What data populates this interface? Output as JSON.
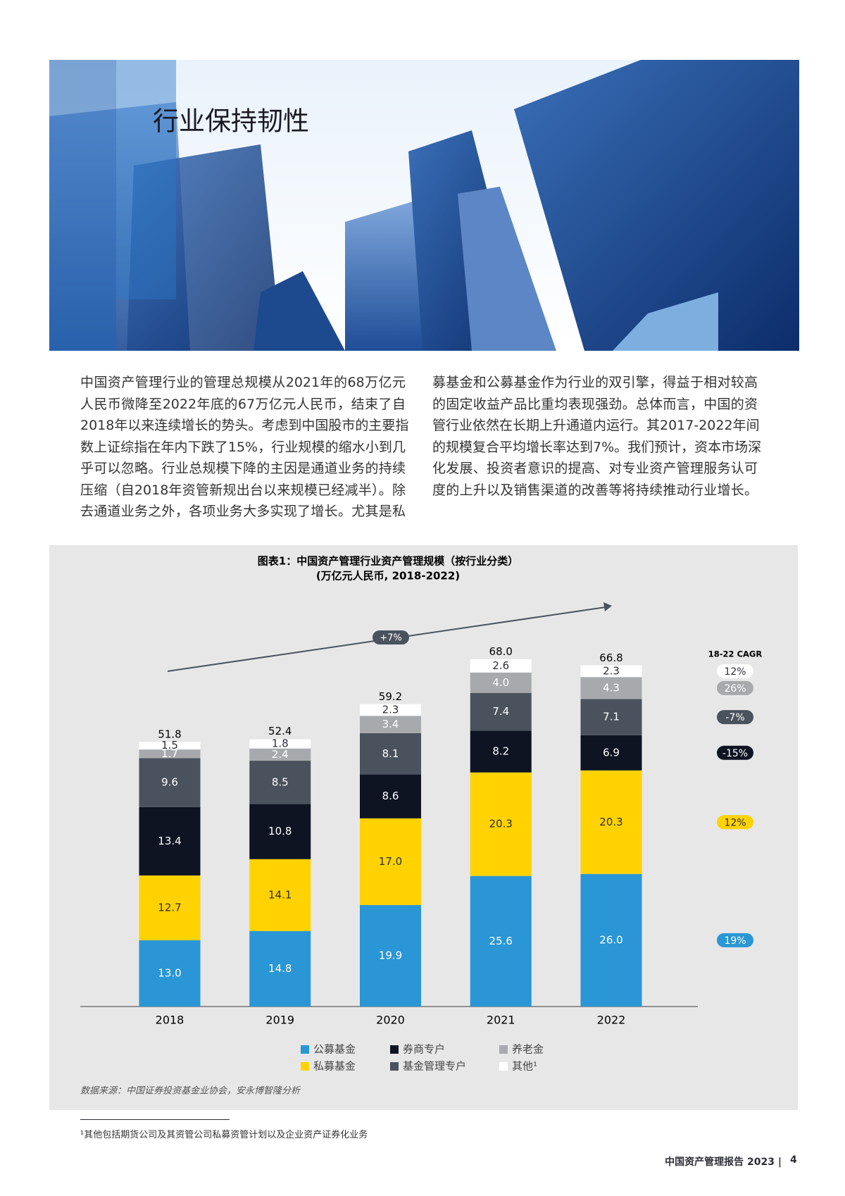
{
  "header": {
    "title": "行业保持韧性"
  },
  "body": {
    "left_lines": [
      "中国资产管理行业的管理总规模从2021年的68万亿元",
      "人民币微降至2022年底的67万亿元人民币，结束了自",
      "2018年以来连续增长的势头。考虑到中国股市的主要指",
      "数上证综指在年内下跌了15%，行业规模的缩水小到几",
      "乎可以忽略。行业总规模下降的主因是通道业务的持续",
      "压缩（自2018年资管新规出台以来规模已经减半）。除",
      "去通道业务之外，各项业务大多实现了增长。尤其是私"
    ],
    "right_lines": [
      "募基金和公募基金作为行业的双引擎，得益于相对较高",
      "的固定收益产品比重均表现强劲。总体而言，中国的资",
      "管行业依然在长期上升通道内运行。其2017-2022年间",
      "的规模复合平均增长率达到7%。我们预计，资本市场深",
      "化发展、投资者意识的提高、对专业资产管理服务认可",
      "度的上升以及销售渠道的改善等将持续推动行业增长。"
    ]
  },
  "chart_data": {
    "type": "stacked_bar",
    "title": "图表1：中国资产管理行业资产管理规模（按行业分类）",
    "subtitle": "(万亿元人民币, 2018-2022)",
    "annotation": "+7%",
    "cagr_title": "18-22 CAGR",
    "categories": [
      "2018",
      "2019",
      "2020",
      "2021",
      "2022"
    ],
    "ylim": [
      0,
      75
    ],
    "series": [
      {
        "name": "公募基金",
        "color": "#2a96d5",
        "label_color": "#ffffff",
        "values": [
          13.0,
          14.8,
          19.9,
          25.6,
          26.0
        ],
        "value_labels": [
          "13.0",
          "14.8",
          "19.9",
          "25.6",
          "26.0"
        ],
        "cagr": 19,
        "cagr_label": "19%"
      },
      {
        "name": "私募基金",
        "color": "#ffd200",
        "label_color": "#2e2e38",
        "values": [
          12.7,
          14.1,
          17.0,
          20.3,
          20.3
        ],
        "value_labels": [
          "12.7",
          "14.1",
          "17.0",
          "20.3",
          "20.3"
        ],
        "cagr": 12,
        "cagr_label": "12%"
      },
      {
        "name": "券商专户",
        "color": "#0e1422",
        "label_color": "#ffffff",
        "values": [
          13.4,
          10.8,
          8.6,
          8.2,
          6.9
        ],
        "value_labels": [
          "13.4",
          "10.8",
          "8.6",
          "8.2",
          "6.9"
        ],
        "cagr": -15,
        "cagr_label": "-15%"
      },
      {
        "name": "基金管理专户",
        "color": "#4a525d",
        "label_color": "#ffffff",
        "values": [
          9.6,
          8.5,
          8.1,
          7.4,
          7.1
        ],
        "value_labels": [
          "9.6",
          "8.5",
          "8.1",
          "7.4",
          "7.1"
        ],
        "cagr": -7,
        "cagr_label": "-7%"
      },
      {
        "name": "养老金",
        "color": "#a7a9ac",
        "label_color": "#ffffff",
        "values": [
          1.7,
          2.4,
          3.4,
          4.0,
          4.3
        ],
        "value_labels": [
          "1.7",
          "2.4",
          "3.4",
          "4.0",
          "4.3"
        ],
        "cagr": 26,
        "cagr_label": "26%"
      },
      {
        "name": "其他¹",
        "color": "#ffffff",
        "label_color": "#2e2e38",
        "values": [
          1.5,
          1.8,
          2.3,
          2.6,
          2.3
        ],
        "value_labels": [
          "1.5",
          "1.8",
          "2.3",
          "2.6",
          "2.3"
        ],
        "cagr": 12,
        "cagr_label": "12%"
      }
    ],
    "totals": {
      "values": [
        51.8,
        52.4,
        59.2,
        68.0,
        66.8
      ],
      "value_labels": [
        "51.8",
        "52.4",
        "59.2",
        "68.0",
        "66.8"
      ]
    },
    "source": "数据来源：中国证券投资基金业协会，安永博智隆分析"
  },
  "footnote": "¹其他包括期货公司及其资管公司私募资管计划以及企业资产证券化业务",
  "footer": {
    "title": "中国资产管理报告 2023 |",
    "page": "4"
  }
}
